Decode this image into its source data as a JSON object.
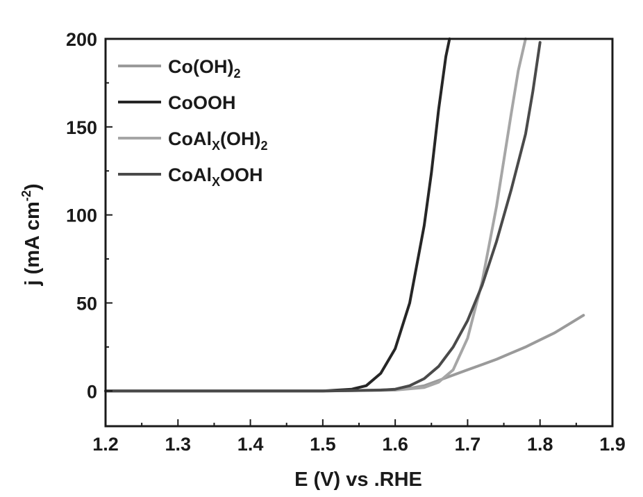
{
  "chart_data": {
    "type": "line",
    "title": "",
    "xlabel": "E (V) vs .RHE",
    "ylabel": "j (mA cm",
    "ylabel_sup": "-2",
    "ylabel_close": ")",
    "xlim": [
      1.2,
      1.9
    ],
    "ylim": [
      -20,
      200
    ],
    "x_ticks": [
      1.2,
      1.3,
      1.4,
      1.5,
      1.6,
      1.7,
      1.8,
      1.9
    ],
    "x_tick_labels": [
      "1.2",
      "1.3",
      "1.4",
      "1.5",
      "1.6",
      "1.7",
      "1.8",
      "1.9"
    ],
    "y_ticks": [
      0,
      50,
      100,
      150,
      200
    ],
    "y_tick_labels": [
      "0",
      "50",
      "100",
      "150",
      "200"
    ],
    "grid": false,
    "legend_position": "top-left",
    "series": [
      {
        "name": "Co(OH)2",
        "legend": {
          "main": "Co(OH)",
          "sub": "2",
          "tail": ""
        },
        "color": "#9a9a9a",
        "x": [
          1.2,
          1.3,
          1.4,
          1.5,
          1.55,
          1.6,
          1.62,
          1.64,
          1.66,
          1.68,
          1.7,
          1.72,
          1.74,
          1.76,
          1.78,
          1.8,
          1.82,
          1.84,
          1.86
        ],
        "y": [
          0,
          0,
          0,
          0,
          0.3,
          0.8,
          1.5,
          3,
          6,
          9,
          12,
          15,
          18,
          21.5,
          25,
          29,
          33,
          38,
          43
        ]
      },
      {
        "name": "CoOOH",
        "legend": {
          "main": "CoOOH",
          "sub": "",
          "tail": ""
        },
        "color": "#262626",
        "x": [
          1.2,
          1.3,
          1.4,
          1.5,
          1.54,
          1.56,
          1.58,
          1.6,
          1.62,
          1.64,
          1.65,
          1.66,
          1.67,
          1.675
        ],
        "y": [
          0,
          0,
          0,
          0,
          1,
          3,
          10,
          24,
          50,
          94,
          124,
          160,
          190,
          200
        ]
      },
      {
        "name": "CoAlx(OH)2",
        "legend": {
          "main": "CoAl",
          "sub": "X",
          "tail": "(OH)2"
        },
        "color": "#a6a6a6",
        "x": [
          1.2,
          1.3,
          1.4,
          1.5,
          1.6,
          1.64,
          1.66,
          1.68,
          1.7,
          1.72,
          1.74,
          1.76,
          1.77,
          1.78
        ],
        "y": [
          0,
          0,
          0,
          0,
          0.5,
          2,
          5,
          12,
          30,
          62,
          105,
          157,
          182,
          200
        ]
      },
      {
        "name": "CoAlxOOH",
        "legend": {
          "main": "CoAl",
          "sub": "X",
          "tail": "OOH"
        },
        "color": "#4a4a4a",
        "x": [
          1.2,
          1.3,
          1.4,
          1.5,
          1.58,
          1.6,
          1.62,
          1.64,
          1.66,
          1.68,
          1.7,
          1.72,
          1.74,
          1.76,
          1.78,
          1.79,
          1.8
        ],
        "y": [
          0,
          0,
          0,
          0,
          0.5,
          1,
          3,
          7,
          14,
          25,
          40,
          60,
          85,
          114,
          146,
          170,
          198
        ]
      }
    ]
  }
}
